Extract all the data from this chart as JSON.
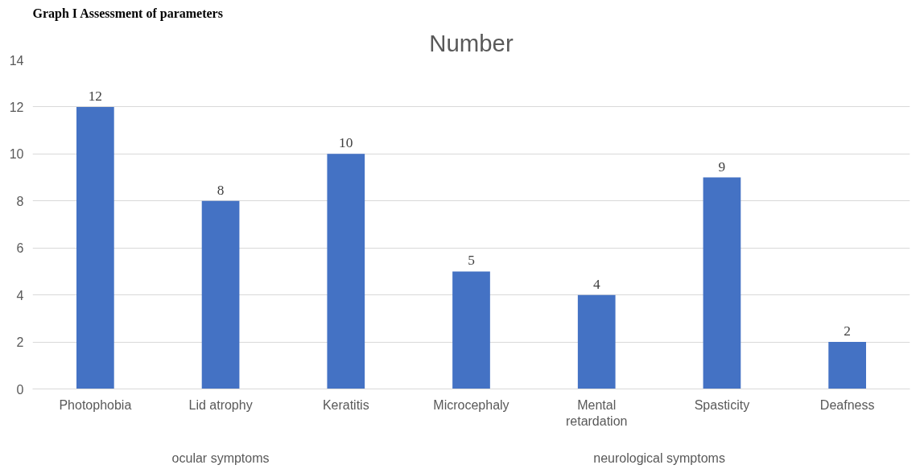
{
  "chart_data": {
    "type": "bar",
    "title": "Number",
    "categories": [
      "Photophobia",
      "Lid atrophy",
      "Keratitis",
      "Microcephaly",
      "Mental\nretardation",
      "Spasticity",
      "Deafness"
    ],
    "values": [
      12,
      8,
      10,
      5,
      4,
      9,
      2
    ],
    "color": "#4472c4",
    "ylim": [
      0,
      14
    ],
    "yticks": [
      0,
      2,
      4,
      6,
      8,
      10,
      12,
      14
    ],
    "grid": "y",
    "data_labels": true,
    "annotations": [
      "Graph I Assessment of parameters",
      "ocular symptoms",
      "neurological symptoms"
    ]
  }
}
